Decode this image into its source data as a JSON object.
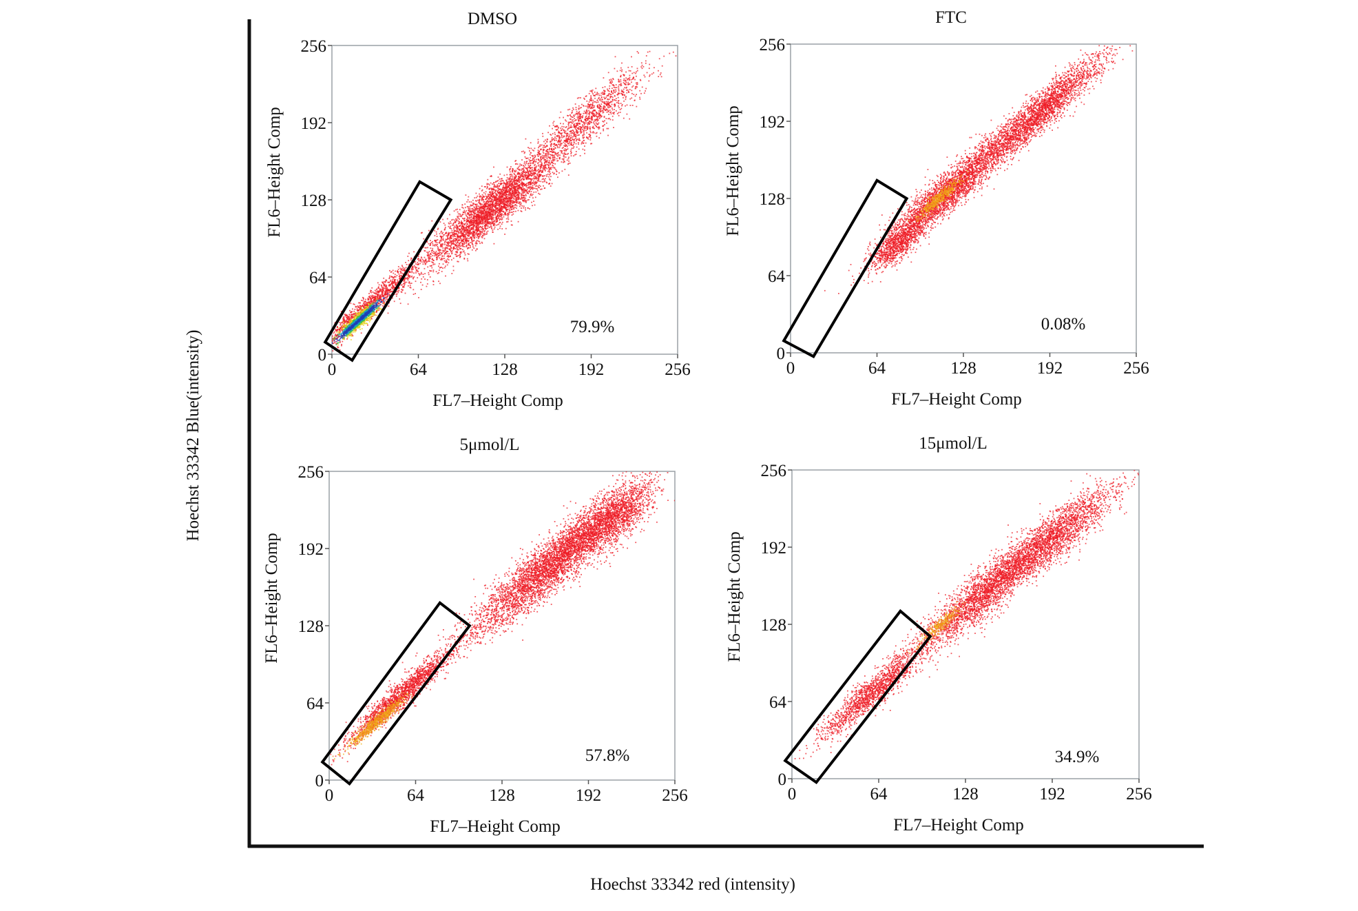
{
  "chart_data": {
    "type": "scatter",
    "description_outer_axes": true,
    "outer_xlabel": "Hoechst 33342 red (intensity)",
    "outer_ylabel": "Hoechst 33342 Blue(intensity)",
    "panels": [
      {
        "title": "DMSO",
        "xlabel": "FL7–Height Comp",
        "ylabel": "FL6–Height Comp",
        "xlim": [
          0,
          256
        ],
        "ylim": [
          0,
          256
        ],
        "xticks": [
          "0",
          "64",
          "128",
          "192",
          "256"
        ],
        "yticks": [
          "0",
          "64",
          "128",
          "192",
          "256"
        ],
        "percentage": "79.9%",
        "gate": [
          [
            -5,
            10
          ],
          [
            15,
            -5
          ],
          [
            88,
            128
          ],
          [
            65,
            143
          ]
        ],
        "populations": [
          {
            "cx": 120,
            "cy": 122,
            "sx": 34,
            "sy": 7,
            "n": 3500
          },
          {
            "cx": 190,
            "cy": 196,
            "sx": 30,
            "sy": 7,
            "n": 1200
          },
          {
            "cx": 30,
            "cy": 42,
            "sx": 28,
            "sy": 4,
            "n": 1400
          },
          {
            "cx": 20,
            "cy": 28,
            "sx": 10,
            "sy": 2.2,
            "n": 1300,
            "dense": true
          }
        ]
      },
      {
        "title": "FTC",
        "xlabel": "FL7–Height Comp",
        "ylabel": "FL6–Height Comp",
        "xlim": [
          0,
          256
        ],
        "ylim": [
          0,
          256
        ],
        "xticks": [
          "0",
          "64",
          "128",
          "192",
          "256"
        ],
        "yticks": [
          "0",
          "64",
          "128",
          "192",
          "256"
        ],
        "percentage": "0.08%",
        "gate": [
          [
            -5,
            10
          ],
          [
            17,
            -3
          ],
          [
            86,
            128
          ],
          [
            64,
            143
          ]
        ],
        "populations": [
          {
            "cx": 115,
            "cy": 132,
            "sx": 32,
            "sy": 6,
            "n": 3000
          },
          {
            "cx": 185,
            "cy": 200,
            "sx": 32,
            "sy": 6,
            "n": 2600
          },
          {
            "cx": 80,
            "cy": 90,
            "sx": 14,
            "sy": 5,
            "n": 800
          },
          {
            "cx": 110,
            "cy": 128,
            "sx": 10,
            "sy": 2,
            "n": 500,
            "warm": true
          }
        ]
      },
      {
        "title": "5μmol/L",
        "xlabel": "FL7–Height Comp",
        "ylabel": "FL6–Height Comp",
        "xlim": [
          0,
          256
        ],
        "ylim": [
          0,
          256
        ],
        "xticks": [
          "0",
          "64",
          "128",
          "192",
          "256"
        ],
        "yticks": [
          "0",
          "64",
          "128",
          "192",
          "256"
        ],
        "percentage": "57.8%",
        "gate": [
          [
            -5,
            15
          ],
          [
            15,
            -3
          ],
          [
            104,
            128
          ],
          [
            82,
            147
          ]
        ],
        "populations": [
          {
            "cx": 165,
            "cy": 180,
            "sx": 40,
            "sy": 8,
            "n": 4000
          },
          {
            "cx": 210,
            "cy": 215,
            "sx": 22,
            "sy": 8,
            "n": 1600
          },
          {
            "cx": 55,
            "cy": 72,
            "sx": 28,
            "sy": 4,
            "n": 1800
          },
          {
            "cx": 35,
            "cy": 48,
            "sx": 14,
            "sy": 2,
            "n": 700,
            "warm": true
          }
        ]
      },
      {
        "title": "15μmol/L",
        "xlabel": "FL7–Height Comp",
        "ylabel": "FL6–Height Comp",
        "xlim": [
          0,
          256
        ],
        "ylim": [
          0,
          256
        ],
        "xticks": [
          "0",
          "64",
          "128",
          "192",
          "256"
        ],
        "yticks": [
          "0",
          "64",
          "128",
          "192",
          "256"
        ],
        "percentage": "34.9%",
        "gate": [
          [
            -5,
            15
          ],
          [
            18,
            -3
          ],
          [
            102,
            118
          ],
          [
            80,
            139
          ]
        ],
        "populations": [
          {
            "cx": 150,
            "cy": 162,
            "sx": 38,
            "sy": 7,
            "n": 3200
          },
          {
            "cx": 200,
            "cy": 205,
            "sx": 28,
            "sy": 7,
            "n": 1500
          },
          {
            "cx": 60,
            "cy": 72,
            "sx": 28,
            "sy": 5,
            "n": 1500
          },
          {
            "cx": 110,
            "cy": 128,
            "sx": 10,
            "sy": 2,
            "n": 300,
            "warm": true
          }
        ]
      }
    ]
  }
}
